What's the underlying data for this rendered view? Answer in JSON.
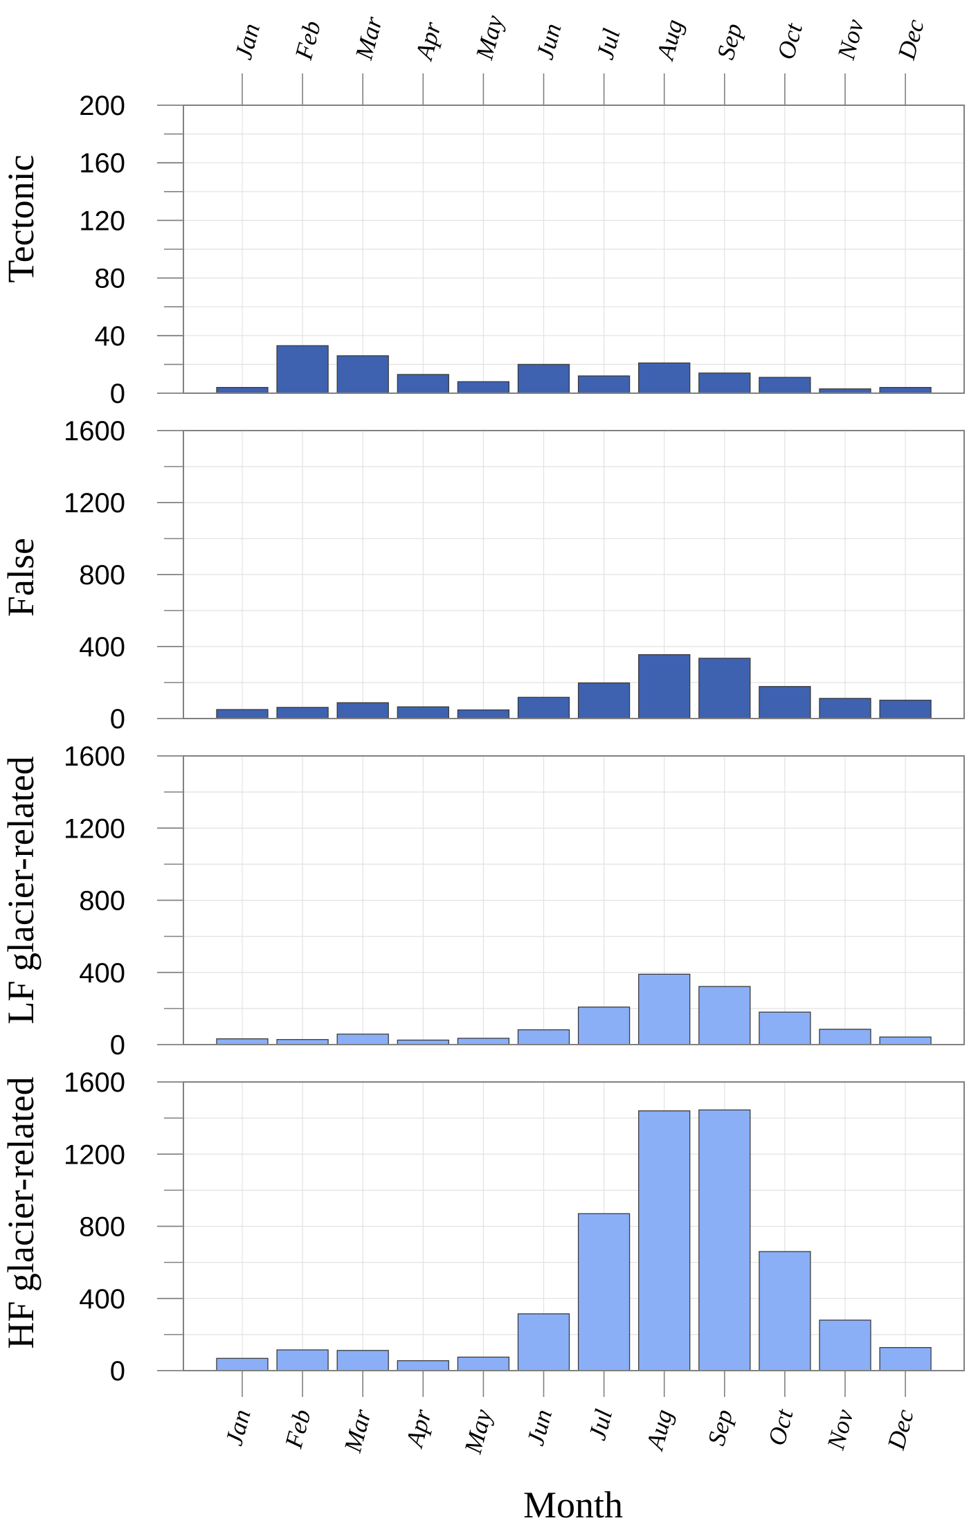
{
  "chart_data": {
    "type": "bar",
    "xlabel": "Month",
    "categories": [
      "Jan",
      "Feb",
      "Mar",
      "Apr",
      "May",
      "Jun",
      "Jul",
      "Aug",
      "Sep",
      "Oct",
      "Nov",
      "Dec"
    ],
    "colors": {
      "dark": "#3e62b0",
      "light": "#8aaff7",
      "grid": "#e2e2e2",
      "frame": "#808080"
    },
    "panels": [
      {
        "ylabel": "Tectonic",
        "ylim": [
          0,
          200
        ],
        "ticks": [
          0,
          40,
          80,
          120,
          160,
          200
        ],
        "minor": 20,
        "color": "dark",
        "values": [
          4,
          33,
          26,
          13,
          8,
          20,
          12,
          21,
          14,
          11,
          3,
          4
        ]
      },
      {
        "ylabel": "False",
        "ylim": [
          0,
          1600
        ],
        "ticks": [
          0,
          400,
          800,
          1200,
          1600
        ],
        "minor": 200,
        "color": "dark",
        "values": [
          50,
          62,
          88,
          65,
          48,
          118,
          198,
          355,
          335,
          178,
          112,
          102
        ]
      },
      {
        "ylabel": "LF glacier-related",
        "ylim": [
          0,
          1600
        ],
        "ticks": [
          0,
          400,
          800,
          1200,
          1600
        ],
        "minor": 200,
        "color": "light",
        "values": [
          32,
          28,
          58,
          25,
          35,
          82,
          208,
          390,
          322,
          180,
          85,
          42
        ]
      },
      {
        "ylabel": "HF glacier-related",
        "ylim": [
          0,
          1600
        ],
        "ticks": [
          0,
          400,
          800,
          1200,
          1600
        ],
        "minor": 200,
        "color": "light",
        "values": [
          68,
          115,
          112,
          55,
          75,
          315,
          870,
          1440,
          1445,
          660,
          280,
          128
        ]
      }
    ]
  }
}
